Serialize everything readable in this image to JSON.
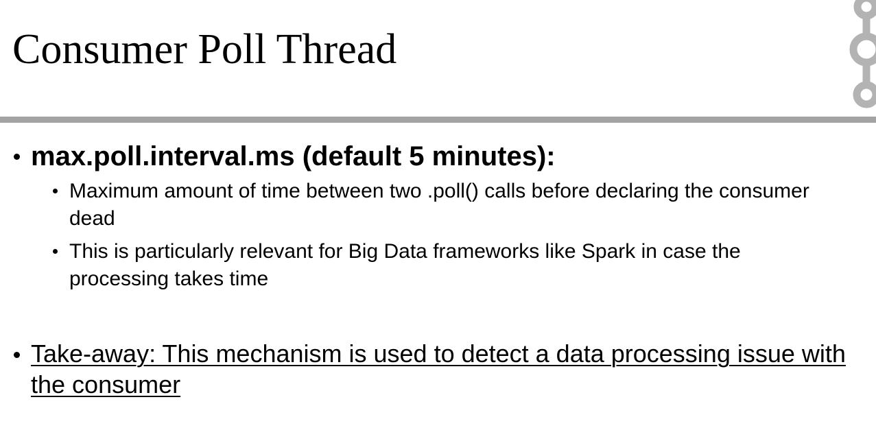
{
  "slide": {
    "title": "Consumer Poll Thread",
    "bullets": [
      {
        "text": "max.poll.interval.ms (default 5 minutes):",
        "sub_bullets": [
          {
            "text": "Maximum amount of time between two .poll() calls before declaring the consumer dead"
          },
          {
            "text": "This is particularly relevant for Big Data frameworks like Spark in case the processing takes time"
          }
        ]
      },
      {
        "text": "Take-away: This mechanism is used to detect a data processing issue with the consumer"
      }
    ]
  },
  "colors": {
    "rule": "#a3a3a3",
    "logo": "#b3b3b3",
    "text": "#000000"
  },
  "icons": {
    "logo": "kafka-logo-icon"
  }
}
